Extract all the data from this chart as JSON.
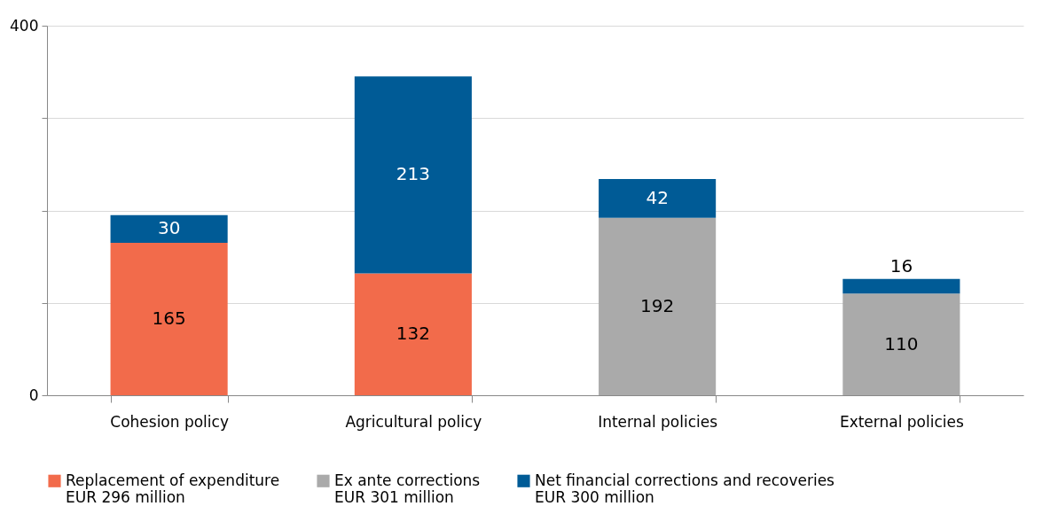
{
  "chart_data": {
    "type": "bar",
    "stacked": true,
    "categories": [
      "Cohesion policy",
      "Agricultural policy",
      "Internal policies",
      "External policies"
    ],
    "series": [
      {
        "name": "Replacement of expenditure\nEUR 296 million",
        "color": "#f26b4b",
        "values": [
          165,
          132,
          null,
          null
        ]
      },
      {
        "name": "Ex ante corrections\nEUR 301 million",
        "color": "#aaaaaa",
        "values": [
          null,
          null,
          192,
          110
        ]
      },
      {
        "name": "Net financial corrections and recoveries\nEUR 300 million",
        "color": "#005b96",
        "values": [
          30,
          213,
          42,
          16
        ]
      }
    ],
    "ylim": [
      0,
      400
    ],
    "yticks": [
      0,
      {
        "value": 100,
        "label": null
      },
      {
        "value": 200,
        "label": null
      },
      {
        "value": 300,
        "label": null
      },
      400
    ],
    "grid": "y",
    "legend": "bottom",
    "data_labels": true
  }
}
